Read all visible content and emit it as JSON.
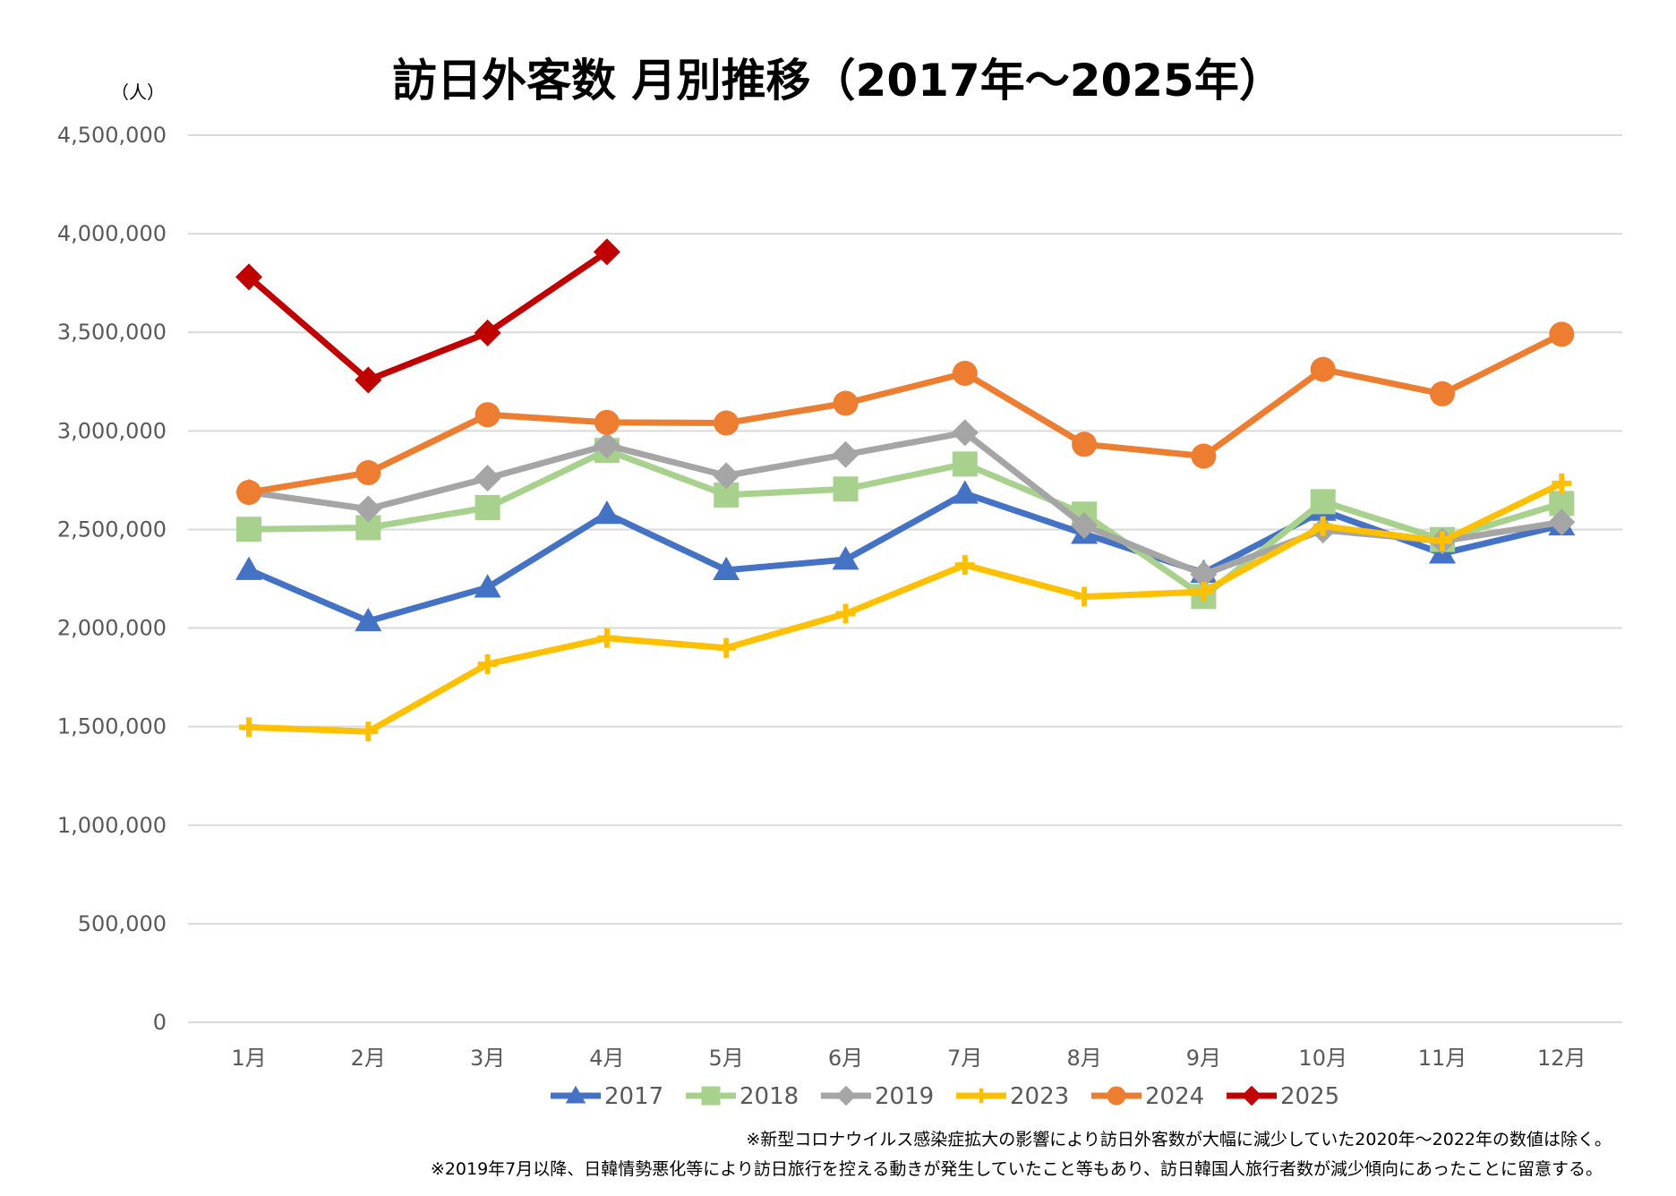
{
  "chart_data": {
    "type": "line",
    "title": "訪日外客数 月別推移（2017年～2025年）",
    "ylabel": "（人）",
    "xlabel": "",
    "ylim": [
      0,
      4500000
    ],
    "y_ticks": [
      0,
      500000,
      1000000,
      1500000,
      2000000,
      2500000,
      3000000,
      3500000,
      4000000,
      4500000
    ],
    "y_tick_labels": [
      "0",
      "500,000",
      "1,000,000",
      "1,500,000",
      "2,000,000",
      "2,500,000",
      "3,000,000",
      "3,500,000",
      "4,000,000",
      "4,500,000"
    ],
    "categories": [
      "1月",
      "2月",
      "3月",
      "4月",
      "5月",
      "6月",
      "7月",
      "8月",
      "9月",
      "10月",
      "11月",
      "12月"
    ],
    "grid": "horizontal",
    "legend_position": "bottom",
    "series": [
      {
        "name": "2017",
        "color": "#4472C4",
        "marker": "triangle",
        "values": [
          2295000,
          2035000,
          2206000,
          2579000,
          2294000,
          2347000,
          2682000,
          2478000,
          2280000,
          2595000,
          2378000,
          2521000
        ]
      },
      {
        "name": "2018",
        "color": "#A9D18E",
        "marker": "square",
        "values": [
          2501000,
          2509000,
          2611000,
          2901000,
          2675000,
          2705000,
          2832000,
          2578000,
          2160000,
          2641000,
          2449000,
          2632000
        ]
      },
      {
        "name": "2019",
        "color": "#A5A5A5",
        "marker": "diamond",
        "values": [
          2689000,
          2604000,
          2760000,
          2927000,
          2773000,
          2880000,
          2991000,
          2520000,
          2272000,
          2497000,
          2441000,
          2537000
        ]
      },
      {
        "name": "2023",
        "color": "#FFC000",
        "marker": "plus",
        "values": [
          1497000,
          1475000,
          1817000,
          1949000,
          1899000,
          2073000,
          2320000,
          2159000,
          2184000,
          2517000,
          2441000,
          2734000
        ]
      },
      {
        "name": "2024",
        "color": "#ED7D31",
        "marker": "circle",
        "values": [
          2688000,
          2788000,
          3082000,
          3043000,
          3040000,
          3140000,
          3292000,
          2932000,
          2872000,
          3312000,
          3188000,
          3490000
        ]
      },
      {
        "name": "2025",
        "color": "#C00000",
        "marker": "diamond",
        "values": [
          3781000,
          3258000,
          3497000,
          3908000,
          null,
          null,
          null,
          null,
          null,
          null,
          null,
          null
        ]
      }
    ]
  },
  "notes": [
    "※新型コロナウイルス感染症拡大の影響により訪日外客数が大幅に減少していた2020年～2022年の数値は除く。",
    "※2019年7月以降、日韓情勢悪化等により訪日旅行を控える動きが発生していたこと等もあり、訪日韓国人旅行者数が減少傾向にあったことに留意する。"
  ]
}
